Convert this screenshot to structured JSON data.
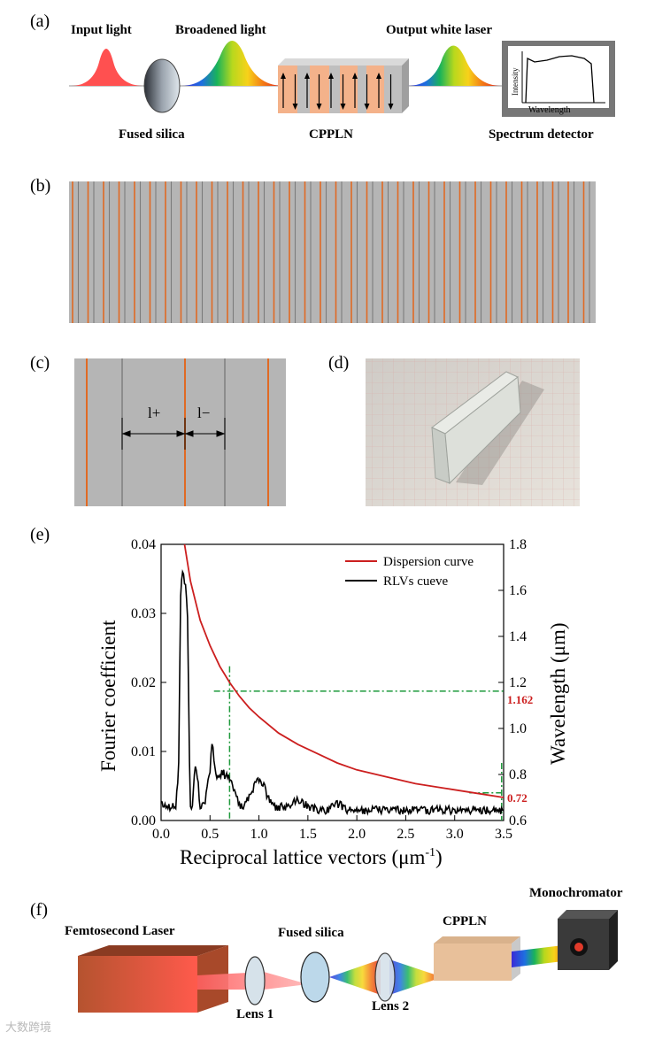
{
  "panels": {
    "a": {
      "label": "(a)",
      "input_light": "Input light",
      "broadened_light": "Broadened light",
      "output_white_laser": "Output white laser",
      "fused_silica": "Fused silica",
      "cppln": "CPPLN",
      "spectrum_detector": "Spectrum detector",
      "detector_ylabel": "Intensity",
      "detector_xlabel": "Wavelength",
      "domain_arrows": [
        "up",
        "down",
        "up",
        "down",
        "up",
        "down",
        "up",
        "down",
        "up",
        "down"
      ]
    },
    "b": {
      "label": "(b)"
    },
    "c": {
      "label": "(c)",
      "l_plus": "l+",
      "l_minus": "l−"
    },
    "d": {
      "label": "(d)"
    },
    "e": {
      "label": "(e)"
    },
    "f": {
      "label": "(f)",
      "femtosecond_laser": "Femtosecond Laser",
      "lens1": "Lens 1",
      "fused_silica": "Fused silica",
      "lens2": "Lens 2",
      "cppln": "CPPLN",
      "monochromator": "Monochromator"
    }
  },
  "chart_data": {
    "type": "line",
    "xlabel": "Reciprocal lattice vectors (μm",
    "xlabel_sup": "-1",
    "xlabel_close": ")",
    "ylabel": "Fourier coefficient",
    "y2label": "Wavelength (μm)",
    "xlim": [
      0.0,
      3.5
    ],
    "ylim": [
      0.0,
      0.04
    ],
    "y2lim": [
      0.6,
      1.8
    ],
    "x_ticks": [
      "0.0",
      "0.5",
      "1.0",
      "1.5",
      "2.0",
      "2.5",
      "3.0",
      "3.5"
    ],
    "y_ticks": [
      "0.00",
      "0.01",
      "0.02",
      "0.03",
      "0.04"
    ],
    "y2_ticks": [
      "0.6",
      "0.8",
      "1.0",
      "1.2",
      "1.4",
      "1.6",
      "1.8"
    ],
    "legend_position": "top-right",
    "series": [
      {
        "name": "Dispersion curve",
        "color": "#cc1f1f",
        "axis": "right",
        "x": [
          0.24,
          0.3,
          0.4,
          0.5,
          0.6,
          0.7,
          0.8,
          0.9,
          1.0,
          1.2,
          1.4,
          1.6,
          1.8,
          2.0,
          2.3,
          2.6,
          2.9,
          3.2,
          3.5
        ],
        "y": [
          1.8,
          1.64,
          1.47,
          1.36,
          1.27,
          1.2,
          1.14,
          1.09,
          1.05,
          0.98,
          0.93,
          0.89,
          0.85,
          0.82,
          0.79,
          0.76,
          0.74,
          0.72,
          0.7
        ]
      },
      {
        "name": "RLVs cueve",
        "color": "#000000",
        "axis": "left",
        "x": [
          0.0,
          0.05,
          0.1,
          0.15,
          0.18,
          0.2,
          0.22,
          0.25,
          0.27,
          0.29,
          0.3,
          0.32,
          0.34,
          0.36,
          0.38,
          0.4,
          0.42,
          0.45,
          0.48,
          0.5,
          0.52,
          0.55,
          0.58,
          0.62,
          0.66,
          0.7,
          0.75,
          0.8,
          0.85,
          0.9,
          0.95,
          1.0,
          1.05,
          1.1,
          1.15,
          1.2,
          1.3,
          1.4,
          1.5,
          1.6,
          1.7,
          1.8,
          1.9,
          2.0,
          2.2,
          2.4,
          2.6,
          2.8,
          3.0,
          3.2,
          3.4,
          3.5
        ],
        "y": [
          0.0025,
          0.002,
          0.002,
          0.002,
          0.008,
          0.033,
          0.036,
          0.034,
          0.03,
          0.008,
          0.002,
          0.002,
          0.007,
          0.0075,
          0.005,
          0.002,
          0.002,
          0.003,
          0.0055,
          0.007,
          0.0115,
          0.0075,
          0.006,
          0.007,
          0.0065,
          0.006,
          0.0045,
          0.002,
          0.002,
          0.0035,
          0.005,
          0.006,
          0.005,
          0.003,
          0.002,
          0.002,
          0.002,
          0.003,
          0.002,
          0.0015,
          0.0015,
          0.0025,
          0.0015,
          0.0015,
          0.0015,
          0.0015,
          0.0015,
          0.0015,
          0.0015,
          0.0015,
          0.0015,
          0.0015
        ]
      }
    ],
    "annotations": [
      {
        "text": "1.162",
        "y": 1.162,
        "x": 0.7,
        "color": "#cc1f1f"
      },
      {
        "text": "0.72",
        "y": 0.72,
        "x": 3.48,
        "color": "#cc1f1f"
      }
    ]
  },
  "watermark": "大数跨境"
}
